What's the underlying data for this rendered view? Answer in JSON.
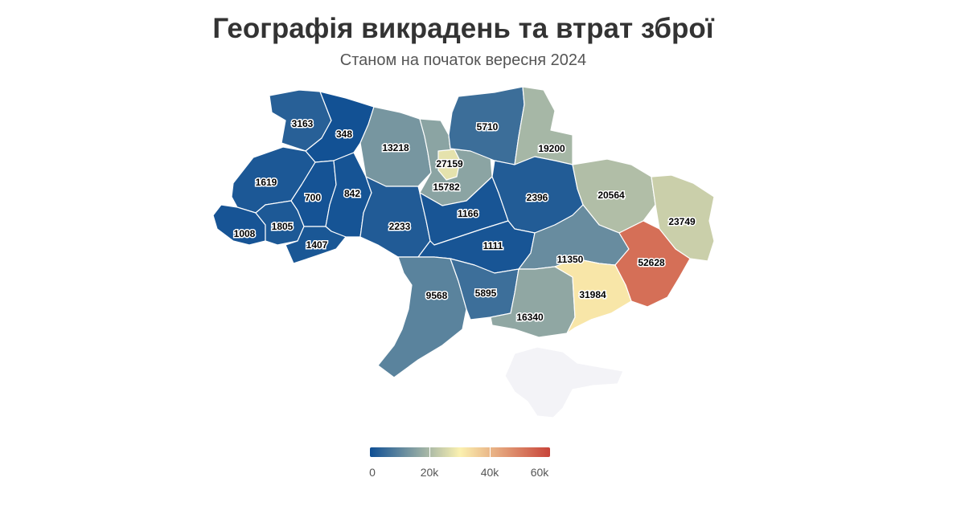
{
  "title": "Географія викрадень та втрат зброї",
  "subtitle": "Станом на початок вересня 2024",
  "colors": {
    "low": "#0f4f94",
    "mid": "#fbf1b0",
    "high": "#c8443a",
    "no_data": "#f3f3f7"
  },
  "legend": {
    "min": 0,
    "max": 60000,
    "ticks": [
      "0",
      "20k",
      "40k",
      "60k"
    ]
  },
  "regions": [
    {
      "name": "Волинська",
      "value": 3163
    },
    {
      "name": "Рівненська",
      "value": 348
    },
    {
      "name": "Житомирська",
      "value": 13218
    },
    {
      "name": "Київська",
      "value": 15782
    },
    {
      "name": "Київ",
      "value": 27159
    },
    {
      "name": "Чернігівська",
      "value": 5710
    },
    {
      "name": "Сумська",
      "value": 19200
    },
    {
      "name": "Львівська",
      "value": 1619
    },
    {
      "name": "Тернопільська",
      "value": 700
    },
    {
      "name": "Хмельницька",
      "value": 842
    },
    {
      "name": "Закарпатська",
      "value": 1008
    },
    {
      "name": "Івано-Франківська",
      "value": 1805
    },
    {
      "name": "Чернівецька",
      "value": 1407
    },
    {
      "name": "Вінницька",
      "value": 2233
    },
    {
      "name": "Черкаська",
      "value": 1166
    },
    {
      "name": "Полтавська",
      "value": 2396
    },
    {
      "name": "Харківська",
      "value": 20564
    },
    {
      "name": "Луганська",
      "value": 23749
    },
    {
      "name": "Кіровоградська",
      "value": 1111
    },
    {
      "name": "Дніпропетровська",
      "value": 11350
    },
    {
      "name": "Донецька",
      "value": 52628
    },
    {
      "name": "Одеська",
      "value": 9568
    },
    {
      "name": "Миколаївська",
      "value": 5895
    },
    {
      "name": "Херсонська",
      "value": 16340
    },
    {
      "name": "Запорізька",
      "value": 31984
    },
    {
      "name": "Крим",
      "value": null
    }
  ]
}
